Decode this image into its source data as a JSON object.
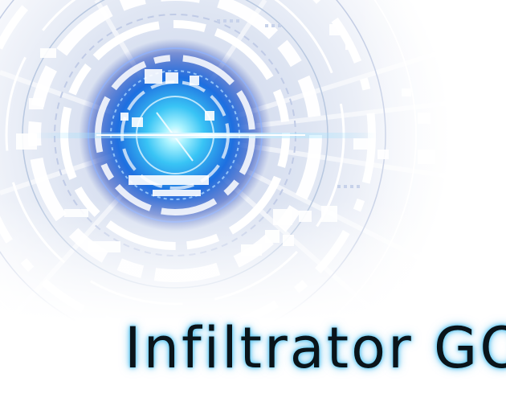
{
  "splash": {
    "title": "Infiltrator GO",
    "artwork": "cyber-eye-circuit-art",
    "colors": {
      "core_glow": "#1e90ff",
      "core_center": "#aef4ff",
      "ring_white": "#ffffff",
      "ring_shadow": "#b8c8e0",
      "title_text": "#0a141a",
      "title_glow": "#35b8f0",
      "background": "#ffffff"
    }
  }
}
